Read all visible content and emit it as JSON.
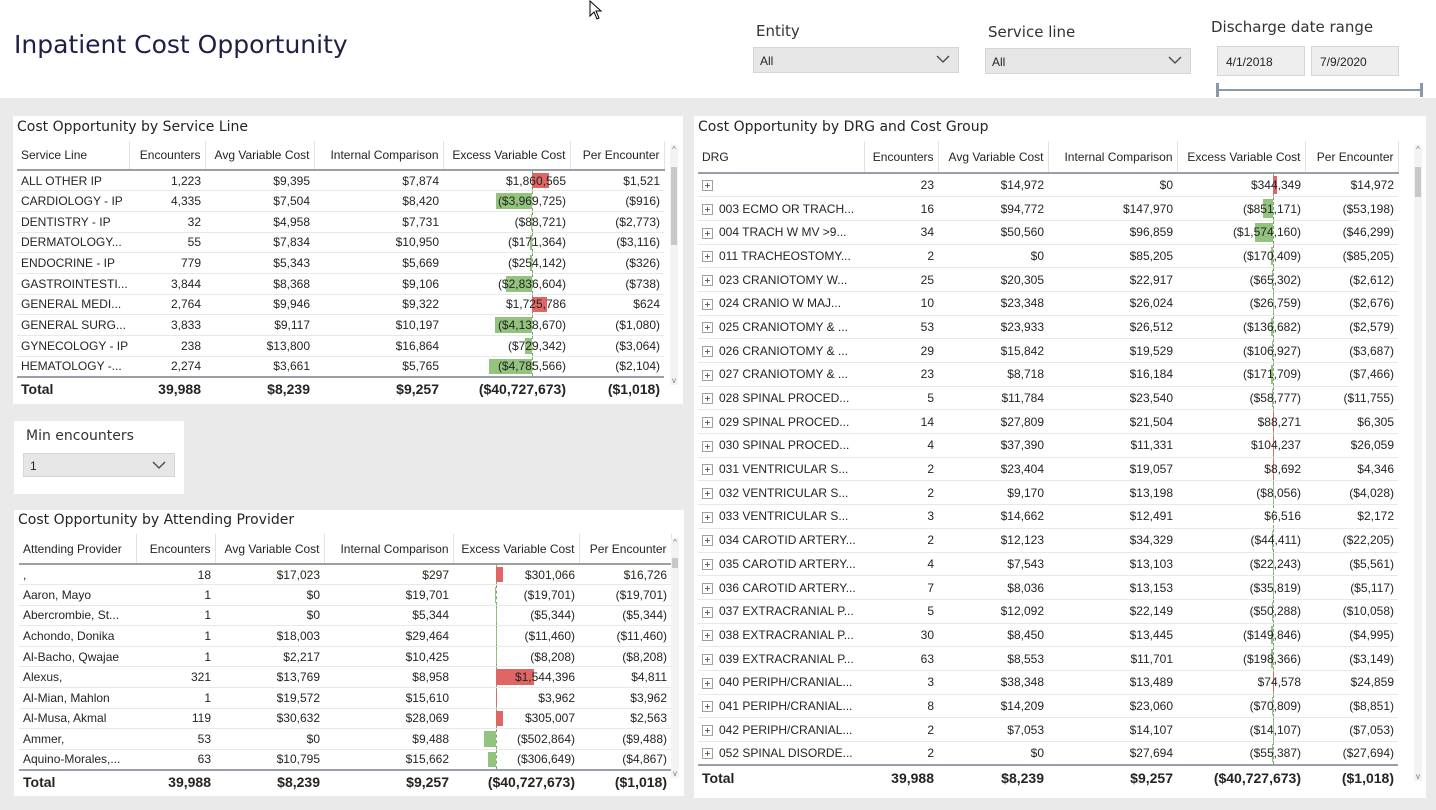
{
  "page": {
    "title": "Inpatient Cost Opportunity"
  },
  "filters": {
    "entity": {
      "label": "Entity",
      "value": "All"
    },
    "service_line": {
      "label": "Service line",
      "value": "All"
    },
    "discharge": {
      "label": "Discharge date range",
      "start": "4/1/2018",
      "end": "7/9/2020"
    },
    "min_encounters": {
      "label": "Min encounters",
      "value": "1"
    }
  },
  "service_line_table": {
    "title": "Cost Opportunity by Service Line",
    "columns": [
      "Service Line",
      "Encounters",
      "Avg Variable Cost",
      "Internal Comparison",
      "Excess Variable Cost",
      "Per Encounter"
    ],
    "rows": [
      {
        "name": "ALL OTHER IP",
        "enc": "1,223",
        "avg": "$9,395",
        "internal": "$7,874",
        "excess": "$1,860,565",
        "per": "$1,521",
        "excess_value": 1860565
      },
      {
        "name": "CARDIOLOGY - IP",
        "enc": "4,335",
        "avg": "$7,504",
        "internal": "$8,420",
        "excess": "($3,969,725)",
        "per": "($916)",
        "excess_value": -3969725
      },
      {
        "name": "DENTISTRY - IP",
        "enc": "32",
        "avg": "$4,958",
        "internal": "$7,731",
        "excess": "($88,721)",
        "per": "($2,773)",
        "excess_value": -88721
      },
      {
        "name": "DERMATOLOGY...",
        "enc": "55",
        "avg": "$7,834",
        "internal": "$10,950",
        "excess": "($171,364)",
        "per": "($3,116)",
        "excess_value": -171364
      },
      {
        "name": "ENDOCRINE - IP",
        "enc": "779",
        "avg": "$5,343",
        "internal": "$5,669",
        "excess": "($254,142)",
        "per": "($326)",
        "excess_value": -254142
      },
      {
        "name": "GASTROINTESTI...",
        "enc": "3,844",
        "avg": "$8,368",
        "internal": "$9,106",
        "excess": "($2,836,604)",
        "per": "($738)",
        "excess_value": -2836604
      },
      {
        "name": "GENERAL MEDI...",
        "enc": "2,764",
        "avg": "$9,946",
        "internal": "$9,322",
        "excess": "$1,725,786",
        "per": "$624",
        "excess_value": 1725786
      },
      {
        "name": "GENERAL SURG...",
        "enc": "3,833",
        "avg": "$9,117",
        "internal": "$10,197",
        "excess": "($4,138,670)",
        "per": "($1,080)",
        "excess_value": -4138670
      },
      {
        "name": "GYNECOLOGY - IP",
        "enc": "238",
        "avg": "$13,800",
        "internal": "$16,864",
        "excess": "($729,342)",
        "per": "($3,064)",
        "excess_value": -729342
      },
      {
        "name": "HEMATOLOGY -...",
        "enc": "2,274",
        "avg": "$3,661",
        "internal": "$5,765",
        "excess": "($4,785,566)",
        "per": "($2,104)",
        "excess_value": -4785566
      }
    ],
    "total": {
      "name": "Total",
      "enc": "39,988",
      "avg": "$8,239",
      "internal": "$9,257",
      "excess": "($40,727,673)",
      "per": "($1,018)"
    }
  },
  "provider_table": {
    "title": "Cost Opportunity by Attending Provider",
    "columns": [
      "Attending Provider",
      "Encounters",
      "Avg Variable Cost",
      "Internal Comparison",
      "Excess Variable Cost",
      "Per Encounter"
    ],
    "rows": [
      {
        "name": ",",
        "enc": "18",
        "avg": "$17,023",
        "internal": "$297",
        "excess": "$301,066",
        "per": "$16,726",
        "excess_value": 301066
      },
      {
        "name": "Aaron, Mayo",
        "enc": "1",
        "avg": "$0",
        "internal": "$19,701",
        "excess": "($19,701)",
        "per": "($19,701)",
        "excess_value": -19701
      },
      {
        "name": "Abercrombie, St...",
        "enc": "1",
        "avg": "$0",
        "internal": "$5,344",
        "excess": "($5,344)",
        "per": "($5,344)",
        "excess_value": -5344
      },
      {
        "name": "Achondo, Donika",
        "enc": "1",
        "avg": "$18,003",
        "internal": "$29,464",
        "excess": "($11,460)",
        "per": "($11,460)",
        "excess_value": -11460
      },
      {
        "name": "Al-Bacho, Qwajae",
        "enc": "1",
        "avg": "$2,217",
        "internal": "$10,425",
        "excess": "($8,208)",
        "per": "($8,208)",
        "excess_value": -8208
      },
      {
        "name": "Alexus,",
        "enc": "321",
        "avg": "$13,769",
        "internal": "$8,958",
        "excess": "$1,544,396",
        "per": "$4,811",
        "excess_value": 1544396
      },
      {
        "name": "Al-Mian, Mahlon",
        "enc": "1",
        "avg": "$19,572",
        "internal": "$15,610",
        "excess": "$3,962",
        "per": "$3,962",
        "excess_value": 3962
      },
      {
        "name": "Al-Musa, Akmal",
        "enc": "119",
        "avg": "$30,632",
        "internal": "$28,069",
        "excess": "$305,007",
        "per": "$2,563",
        "excess_value": 305007
      },
      {
        "name": "Ammer,",
        "enc": "53",
        "avg": "$0",
        "internal": "$9,488",
        "excess": "($502,864)",
        "per": "($9,488)",
        "excess_value": -502864
      },
      {
        "name": "Aquino-Morales,...",
        "enc": "63",
        "avg": "$10,795",
        "internal": "$15,662",
        "excess": "($306,649)",
        "per": "($4,867)",
        "excess_value": -306649
      }
    ],
    "total": {
      "name": "Total",
      "enc": "39,988",
      "avg": "$8,239",
      "internal": "$9,257",
      "excess": "($40,727,673)",
      "per": "($1,018)"
    }
  },
  "drg_table": {
    "title": "Cost Opportunity by DRG and Cost Group",
    "columns": [
      "DRG",
      "Encounters",
      "Avg Variable Cost",
      "Internal Comparison",
      "Excess Variable Cost",
      "Per Encounter"
    ],
    "rows": [
      {
        "name": "",
        "enc": "23",
        "avg": "$14,972",
        "internal": "$0",
        "excess": "$344,349",
        "per": "$14,972",
        "excess_value": 344349
      },
      {
        "name": "003 ECMO OR TRACH...",
        "enc": "16",
        "avg": "$94,772",
        "internal": "$147,970",
        "excess": "($851,171)",
        "per": "($53,198)",
        "excess_value": -851171
      },
      {
        "name": "004 TRACH W MV >9...",
        "enc": "34",
        "avg": "$50,560",
        "internal": "$96,859",
        "excess": "($1,574,160)",
        "per": "($46,299)",
        "excess_value": -1574160
      },
      {
        "name": "011 TRACHEOSTOMY...",
        "enc": "2",
        "avg": "$0",
        "internal": "$85,205",
        "excess": "($170,409)",
        "per": "($85,205)",
        "excess_value": -170409
      },
      {
        "name": "023 CRANIOTOMY W...",
        "enc": "25",
        "avg": "$20,305",
        "internal": "$22,917",
        "excess": "($65,302)",
        "per": "($2,612)",
        "excess_value": -65302
      },
      {
        "name": "024 CRANIO W MAJ...",
        "enc": "10",
        "avg": "$23,348",
        "internal": "$26,024",
        "excess": "($26,759)",
        "per": "($2,676)",
        "excess_value": -26759
      },
      {
        "name": "025 CRANIOTOMY & ...",
        "enc": "53",
        "avg": "$23,933",
        "internal": "$26,512",
        "excess": "($136,682)",
        "per": "($2,579)",
        "excess_value": -136682
      },
      {
        "name": "026 CRANIOTOMY & ...",
        "enc": "29",
        "avg": "$15,842",
        "internal": "$19,529",
        "excess": "($106,927)",
        "per": "($3,687)",
        "excess_value": -106927
      },
      {
        "name": "027 CRANIOTOMY & ...",
        "enc": "23",
        "avg": "$8,718",
        "internal": "$16,184",
        "excess": "($171,709)",
        "per": "($7,466)",
        "excess_value": -171709
      },
      {
        "name": "028 SPINAL PROCED...",
        "enc": "5",
        "avg": "$11,784",
        "internal": "$23,540",
        "excess": "($58,777)",
        "per": "($11,755)",
        "excess_value": -58777
      },
      {
        "name": "029 SPINAL PROCED...",
        "enc": "14",
        "avg": "$27,809",
        "internal": "$21,504",
        "excess": "$88,271",
        "per": "$6,305",
        "excess_value": 88271
      },
      {
        "name": "030 SPINAL PROCED...",
        "enc": "4",
        "avg": "$37,390",
        "internal": "$11,331",
        "excess": "$104,237",
        "per": "$26,059",
        "excess_value": 104237
      },
      {
        "name": "031 VENTRICULAR S...",
        "enc": "2",
        "avg": "$23,404",
        "internal": "$19,057",
        "excess": "$8,692",
        "per": "$4,346",
        "excess_value": 8692
      },
      {
        "name": "032 VENTRICULAR S...",
        "enc": "2",
        "avg": "$9,170",
        "internal": "$13,198",
        "excess": "($8,056)",
        "per": "($4,028)",
        "excess_value": -8056
      },
      {
        "name": "033 VENTRICULAR S...",
        "enc": "3",
        "avg": "$14,662",
        "internal": "$12,491",
        "excess": "$6,516",
        "per": "$2,172",
        "excess_value": 6516
      },
      {
        "name": "034 CAROTID ARTERY...",
        "enc": "2",
        "avg": "$12,123",
        "internal": "$34,329",
        "excess": "($44,411)",
        "per": "($22,205)",
        "excess_value": -44411
      },
      {
        "name": "035 CAROTID ARTERY...",
        "enc": "4",
        "avg": "$7,543",
        "internal": "$13,103",
        "excess": "($22,243)",
        "per": "($5,561)",
        "excess_value": -22243
      },
      {
        "name": "036 CAROTID ARTERY...",
        "enc": "7",
        "avg": "$8,036",
        "internal": "$13,153",
        "excess": "($35,819)",
        "per": "($5,117)",
        "excess_value": -35819
      },
      {
        "name": "037 EXTRACRANIAL P...",
        "enc": "5",
        "avg": "$12,092",
        "internal": "$22,149",
        "excess": "($50,288)",
        "per": "($10,058)",
        "excess_value": -50288
      },
      {
        "name": "038 EXTRACRANIAL P...",
        "enc": "30",
        "avg": "$8,450",
        "internal": "$13,445",
        "excess": "($149,846)",
        "per": "($4,995)",
        "excess_value": -149846
      },
      {
        "name": "039 EXTRACRANIAL P...",
        "enc": "63",
        "avg": "$8,553",
        "internal": "$11,701",
        "excess": "($198,366)",
        "per": "($3,149)",
        "excess_value": -198366
      },
      {
        "name": "040 PERIPH/CRANIAL...",
        "enc": "3",
        "avg": "$38,348",
        "internal": "$13,489",
        "excess": "$74,578",
        "per": "$24,859",
        "excess_value": 74578
      },
      {
        "name": "041 PERIPH/CRANIAL...",
        "enc": "8",
        "avg": "$14,209",
        "internal": "$23,060",
        "excess": "($70,809)",
        "per": "($8,851)",
        "excess_value": -70809
      },
      {
        "name": "042 PERIPH/CRANIAL...",
        "enc": "2",
        "avg": "$7,053",
        "internal": "$14,107",
        "excess": "($14,107)",
        "per": "($7,053)",
        "excess_value": -14107
      },
      {
        "name": "052 SPINAL DISORDE...",
        "enc": "2",
        "avg": "$0",
        "internal": "$27,694",
        "excess": "($55,387)",
        "per": "($27,694)",
        "excess_value": -55387
      }
    ],
    "total": {
      "name": "Total",
      "enc": "39,988",
      "avg": "$8,239",
      "internal": "$9,257",
      "excess": "($40,727,673)",
      "per": "($1,018)"
    }
  },
  "colors": {
    "positive_bar": "#e06666",
    "negative_bar": "#93c47d",
    "title_text": "#1f1f4a"
  }
}
